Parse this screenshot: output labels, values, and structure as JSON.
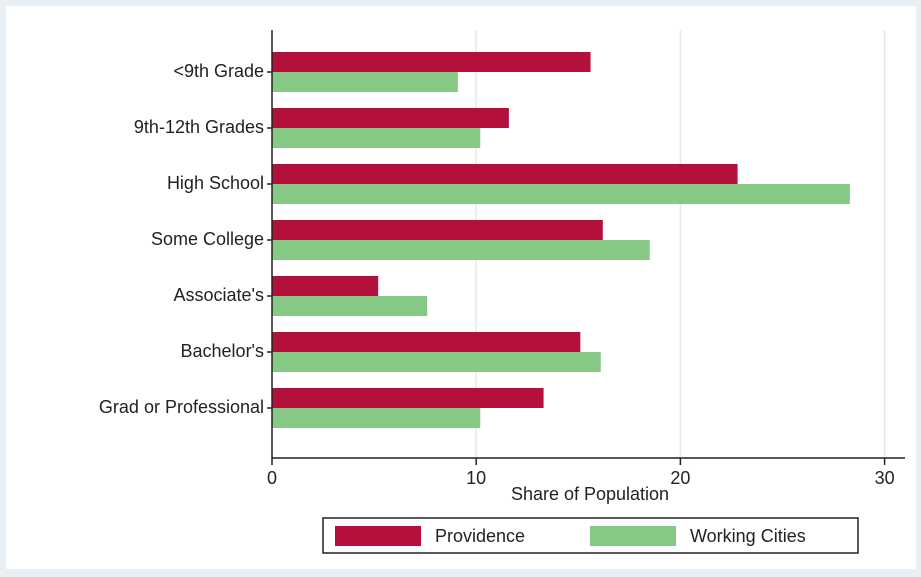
{
  "chart_data": {
    "type": "bar",
    "orientation": "horizontal",
    "categories": [
      "<9th Grade",
      "9th-12th Grades",
      "High School",
      "Some College",
      "Associate's",
      "Bachelor's",
      "Grad or Professional"
    ],
    "series": [
      {
        "name": "Providence",
        "color": "#b3103b",
        "values": [
          15.6,
          11.6,
          22.8,
          16.2,
          5.2,
          15.1,
          13.3
        ]
      },
      {
        "name": "Working Cities",
        "color": "#85c985",
        "values": [
          9.1,
          10.2,
          28.3,
          18.5,
          7.6,
          16.1,
          10.2
        ]
      }
    ],
    "x_label": "Share of Population",
    "xlim": [
      0,
      31
    ],
    "xticks": [
      0,
      10,
      20,
      30
    ],
    "grid": true,
    "legend": "bottom"
  }
}
